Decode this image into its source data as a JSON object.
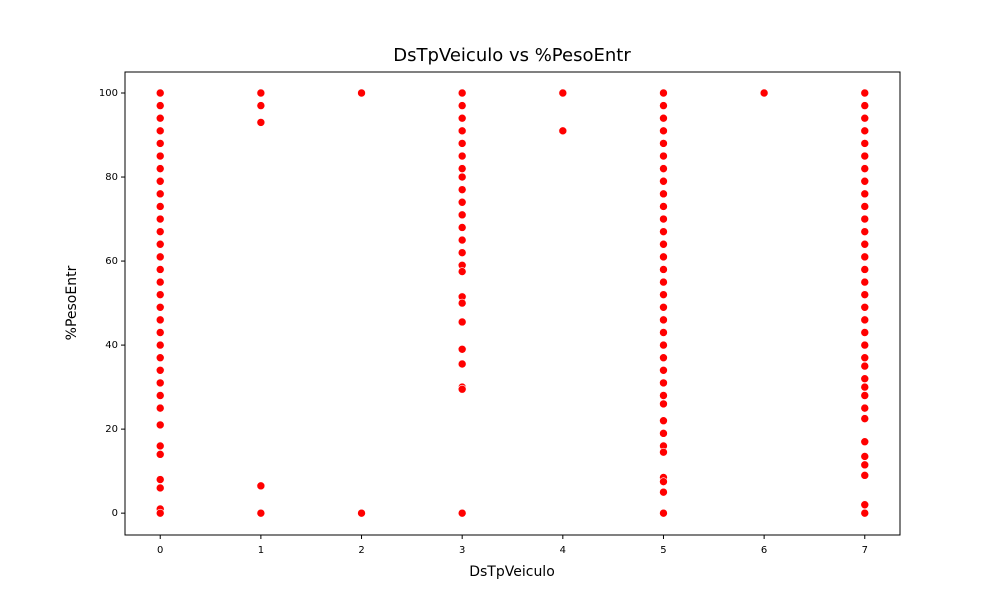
{
  "chart_data": {
    "type": "scatter",
    "title": "DsTpVeiculo vs %PesoEntr",
    "x_label": "DsTpVeiculo",
    "y_label": "%PesoEntr",
    "color": "#ff0000",
    "x": [
      0,
      0,
      0,
      0,
      0,
      0,
      0,
      0,
      0,
      0,
      0,
      0,
      0,
      0,
      0,
      0,
      0,
      0,
      0,
      0,
      0,
      0,
      0,
      0,
      0,
      0,
      0,
      0,
      0,
      0,
      0,
      0,
      0,
      1,
      1,
      1,
      1,
      1,
      2,
      2,
      3,
      3,
      3,
      3,
      3,
      3,
      3,
      3,
      3,
      3,
      3,
      3,
      3,
      3,
      3,
      3,
      3,
      3,
      3,
      3,
      3,
      3,
      3,
      3,
      4,
      4,
      5,
      5,
      5,
      5,
      5,
      5,
      5,
      5,
      5,
      5,
      5,
      5,
      5,
      5,
      5,
      5,
      5,
      5,
      5,
      5,
      5,
      5,
      5,
      5,
      5,
      5,
      5,
      5,
      5,
      5,
      5,
      5,
      5,
      5,
      6,
      7,
      7,
      7,
      7,
      7,
      7,
      7,
      7,
      7,
      7,
      7,
      7,
      7,
      7,
      7,
      7,
      7,
      7,
      7,
      7,
      7,
      7,
      7,
      7,
      7,
      7,
      7,
      7,
      7,
      7,
      7,
      7,
      7,
      7
    ],
    "values": [
      100,
      97,
      94,
      91,
      88,
      85,
      82,
      79,
      76,
      73,
      70,
      67,
      64,
      61,
      58,
      55,
      52,
      49,
      46,
      43,
      40,
      37,
      34,
      31,
      28,
      25,
      21,
      16,
      14,
      8,
      6,
      1,
      0,
      100,
      97,
      93,
      6.5,
      0,
      100,
      0,
      100,
      97,
      94,
      91,
      88,
      85,
      82,
      80,
      77,
      74,
      71,
      68,
      65,
      62,
      59,
      57.5,
      51.5,
      50,
      45.5,
      39,
      35.5,
      30,
      29.5,
      0,
      100,
      91,
      100,
      97,
      94,
      91,
      88,
      85,
      82,
      79,
      76,
      73,
      70,
      67,
      64,
      61,
      58,
      55,
      52,
      49,
      46,
      43,
      40,
      37,
      34,
      31,
      28,
      26,
      22,
      19,
      16,
      14.5,
      8.5,
      7.5,
      5,
      0,
      100,
      100,
      97,
      94,
      91,
      88,
      85,
      82,
      79,
      76,
      73,
      70,
      67,
      64,
      61,
      58,
      55,
      52,
      49,
      46,
      43,
      40,
      37,
      35,
      32,
      30,
      28,
      25,
      22.5,
      17,
      13.5,
      11.5,
      9,
      2,
      0
    ],
    "xlim": [
      -0.35,
      7.35
    ],
    "xticks": [
      0,
      1,
      2,
      3,
      4,
      5,
      6,
      7
    ],
    "ylim": [
      -5.2,
      105
    ],
    "yticks": [
      0,
      20,
      40,
      60,
      80,
      100
    ],
    "grid": false
  }
}
